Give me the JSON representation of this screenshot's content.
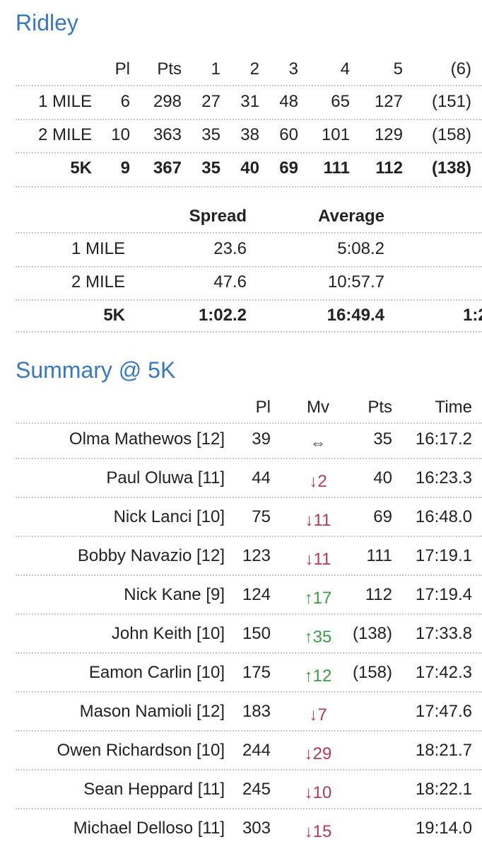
{
  "team": {
    "title": "Ridley",
    "headers": [
      "Pl",
      "Pts",
      "1",
      "2",
      "3",
      "4",
      "5",
      "(6)"
    ],
    "rows": [
      {
        "label": "1 MILE",
        "cells": [
          "6",
          "298",
          "27",
          "31",
          "48",
          "65",
          "127",
          "(151)"
        ],
        "bold": false
      },
      {
        "label": "2 MILE",
        "cells": [
          "10",
          "363",
          "35",
          "38",
          "60",
          "101",
          "129",
          "(158)"
        ],
        "bold": false
      },
      {
        "label": "5K",
        "cells": [
          "9",
          "367",
          "35",
          "40",
          "69",
          "111",
          "112",
          "(138)"
        ],
        "bold": true
      }
    ]
  },
  "spread": {
    "headers": [
      "Spread",
      "Average"
    ],
    "rows": [
      {
        "label": "1 MILE",
        "spread": "23.6",
        "average": "5:08.2",
        "extra": "",
        "bold": false
      },
      {
        "label": "2 MILE",
        "spread": "47.6",
        "average": "10:57.7",
        "extra": "",
        "bold": false
      },
      {
        "label": "5K",
        "spread": "1:02.2",
        "average": "16:49.4",
        "extra": "1:2",
        "bold": true
      }
    ]
  },
  "summary": {
    "title": "Summary @ 5K",
    "headers": [
      "Pl",
      "Mv",
      "Pts",
      "Time"
    ],
    "rows": [
      {
        "name": "Olma Mathewos [12]",
        "pl": "39",
        "mv": "⇔",
        "dir": "eq",
        "pts": "35",
        "time": "16:17.2"
      },
      {
        "name": "Paul Oluwa [11]",
        "pl": "44",
        "mv": "↓2",
        "dir": "down",
        "pts": "40",
        "time": "16:23.3"
      },
      {
        "name": "Nick Lanci [10]",
        "pl": "75",
        "mv": "↓11",
        "dir": "down",
        "pts": "69",
        "time": "16:48.0"
      },
      {
        "name": "Bobby Navazio [12]",
        "pl": "123",
        "mv": "↓11",
        "dir": "down",
        "pts": "111",
        "time": "17:19.1"
      },
      {
        "name": "Nick Kane [9]",
        "pl": "124",
        "mv": "↑17",
        "dir": "up",
        "pts": "112",
        "time": "17:19.4"
      },
      {
        "name": "John Keith [10]",
        "pl": "150",
        "mv": "↑35",
        "dir": "up",
        "pts": "(138)",
        "time": "17:33.8"
      },
      {
        "name": "Eamon Carlin [10]",
        "pl": "175",
        "mv": "↑12",
        "dir": "up",
        "pts": "(158)",
        "time": "17:42.3"
      },
      {
        "name": "Mason Namioli [12]",
        "pl": "183",
        "mv": "↓7",
        "dir": "down",
        "pts": "",
        "time": "17:47.6"
      },
      {
        "name": "Owen Richardson [10]",
        "pl": "244",
        "mv": "↓29",
        "dir": "down",
        "pts": "",
        "time": "18:21.7"
      },
      {
        "name": "Sean Heppard [11]",
        "pl": "245",
        "mv": "↓10",
        "dir": "down",
        "pts": "",
        "time": "18:22.1"
      },
      {
        "name": "Michael Delloso [11]",
        "pl": "303",
        "mv": "↓15",
        "dir": "down",
        "pts": "",
        "time": "19:14.0"
      }
    ]
  },
  "colors": {
    "title": "#3a78bd",
    "down": "#b23a55",
    "up": "#3e9a4a",
    "divider": "#c8c8c8"
  }
}
